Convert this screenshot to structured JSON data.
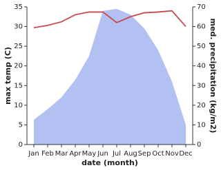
{
  "chart_data": {
    "type": "line",
    "categories": [
      "Jan",
      "Feb",
      "Mar",
      "Apr",
      "May",
      "Jun",
      "Jul",
      "Aug",
      "Sep",
      "Oct",
      "Nov",
      "Dec"
    ],
    "series": [
      {
        "name": "max temp (C)",
        "color": "#c8484f",
        "values": [
          29.7,
          30.3,
          31.2,
          33.0,
          33.7,
          33.7,
          31.0,
          32.5,
          33.5,
          33.7,
          34.0,
          30.0
        ]
      },
      {
        "name": "med. precipitation (kg/m2)",
        "color": "#b3c0f2",
        "axis": "y2",
        "values": [
          12.6,
          18,
          24,
          33,
          45,
          68,
          69,
          66,
          59,
          48,
          32,
          10
        ]
      }
    ],
    "xlabel": "date (month)",
    "ylabel": "max temp (C)",
    "y2label": "med. precipitation (kg/m2)",
    "ylim": [
      0,
      35
    ],
    "yticks": [
      0,
      5,
      10,
      15,
      20,
      25,
      30,
      35
    ],
    "y2lim": [
      0,
      70
    ],
    "y2ticks": [
      0,
      10,
      20,
      30,
      40,
      50,
      60,
      70
    ]
  }
}
